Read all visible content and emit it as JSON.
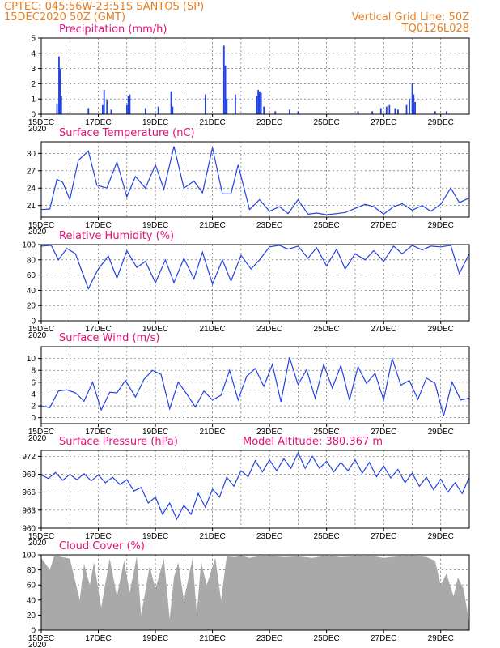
{
  "header": {
    "line1_left": "CPTEC:  045:56W-23:51S  SANTOS (SP)",
    "line2_left": "15DEC2020 50Z (GMT)",
    "line1_right": "Vertical Grid Line: 50Z",
    "line2_right": "TQ0126L028"
  },
  "colors": {
    "header": "#e67e22",
    "title": "#e0117a",
    "series": "#2443e0",
    "cloud": "#a9a9a9"
  },
  "x_labels": [
    "15DEC",
    "17DEC",
    "19DEC",
    "21DEC",
    "23DEC",
    "25DEC",
    "27DEC",
    "29DEC"
  ],
  "x_sublabel": "2020",
  "chart_data": [
    {
      "type": "bar",
      "title": "Precipitation (mm/h)",
      "ylim": [
        0,
        5
      ],
      "yticks": [
        0,
        1,
        2,
        3,
        4,
        5
      ],
      "x_range_days": [
        0,
        15
      ],
      "x_unit": "days after 15DEC2020 00Z (estimated)",
      "events": [
        {
          "x": 0.55,
          "y": 0.7
        },
        {
          "x": 0.62,
          "y": 3.8
        },
        {
          "x": 0.66,
          "y": 3.0
        },
        {
          "x": 0.7,
          "y": 1.2
        },
        {
          "x": 1.65,
          "y": 0.4
        },
        {
          "x": 2.15,
          "y": 0.6
        },
        {
          "x": 2.2,
          "y": 1.6
        },
        {
          "x": 2.3,
          "y": 0.9
        },
        {
          "x": 2.45,
          "y": 0.3
        },
        {
          "x": 3.0,
          "y": 0.6
        },
        {
          "x": 3.05,
          "y": 1.2
        },
        {
          "x": 3.1,
          "y": 1.3
        },
        {
          "x": 3.65,
          "y": 0.4
        },
        {
          "x": 4.1,
          "y": 0.5
        },
        {
          "x": 4.55,
          "y": 1.5
        },
        {
          "x": 4.6,
          "y": 0.5
        },
        {
          "x": 5.75,
          "y": 1.3
        },
        {
          "x": 6.4,
          "y": 4.5
        },
        {
          "x": 6.45,
          "y": 3.2
        },
        {
          "x": 6.5,
          "y": 1.0
        },
        {
          "x": 6.8,
          "y": 1.3
        },
        {
          "x": 7.55,
          "y": 1.2
        },
        {
          "x": 7.6,
          "y": 1.6
        },
        {
          "x": 7.65,
          "y": 1.5
        },
        {
          "x": 7.7,
          "y": 1.4
        },
        {
          "x": 7.8,
          "y": 0.5
        },
        {
          "x": 8.2,
          "y": 0.2
        },
        {
          "x": 8.7,
          "y": 0.3
        },
        {
          "x": 9.0,
          "y": 0.2
        },
        {
          "x": 11.1,
          "y": 0.2
        },
        {
          "x": 11.6,
          "y": 0.2
        },
        {
          "x": 11.9,
          "y": 0.4
        },
        {
          "x": 12.1,
          "y": 0.5
        },
        {
          "x": 12.2,
          "y": 0.6
        },
        {
          "x": 12.4,
          "y": 0.4
        },
        {
          "x": 12.5,
          "y": 0.3
        },
        {
          "x": 12.8,
          "y": 0.6
        },
        {
          "x": 12.9,
          "y": 1.0
        },
        {
          "x": 13.0,
          "y": 2.0
        },
        {
          "x": 13.05,
          "y": 1.3
        },
        {
          "x": 13.1,
          "y": 0.8
        },
        {
          "x": 13.8,
          "y": 0.2
        },
        {
          "x": 14.2,
          "y": 0.2
        }
      ]
    },
    {
      "type": "line",
      "title": "Surface Temperature (nC)",
      "ylim": [
        19,
        32
      ],
      "yticks": [
        21,
        24,
        27,
        30
      ],
      "x_range_days": [
        0,
        15
      ],
      "x_unit": "days after 15DEC2020 00Z (estimated)",
      "x": [
        0,
        0.3,
        0.55,
        0.75,
        1.0,
        1.3,
        1.65,
        1.95,
        2.3,
        2.65,
        3.0,
        3.3,
        3.65,
        4.0,
        4.3,
        4.65,
        5.0,
        5.35,
        5.65,
        6.0,
        6.35,
        6.65,
        6.9,
        7.3,
        7.65,
        8.0,
        8.35,
        8.65,
        9.0,
        9.35,
        9.65,
        10.0,
        10.35,
        10.65,
        11.0,
        11.35,
        11.65,
        12.0,
        12.35,
        12.65,
        13.0,
        13.35,
        13.65,
        14.0,
        14.35,
        14.65,
        15.0
      ],
      "values": [
        20.3,
        20.4,
        25.5,
        25.0,
        22.0,
        28.8,
        30.4,
        24.5,
        24.0,
        28.5,
        22.5,
        26.0,
        24.0,
        28.0,
        23.8,
        31.2,
        24.0,
        25.2,
        23.2,
        31.0,
        23.0,
        23.0,
        28.0,
        20.3,
        22.0,
        20.0,
        20.8,
        19.6,
        22.0,
        19.5,
        19.7,
        19.4,
        19.6,
        19.8,
        20.5,
        21.2,
        20.8,
        19.5,
        20.8,
        21.3,
        20.2,
        21.0,
        20.0,
        21.2,
        24.0,
        21.5,
        22.3
      ]
    },
    {
      "type": "line",
      "title": "Relative Humidity (%)",
      "ylim": [
        0,
        100
      ],
      "yticks": [
        0,
        20,
        40,
        60,
        80,
        100
      ],
      "x_range_days": [
        0,
        15
      ],
      "x_unit": "days after 15DEC2020 00Z (estimated)",
      "x": [
        0,
        0.35,
        0.6,
        0.9,
        1.2,
        1.65,
        2.0,
        2.35,
        2.65,
        3.0,
        3.35,
        3.65,
        4.0,
        4.35,
        4.65,
        5.0,
        5.35,
        5.65,
        6.0,
        6.35,
        6.65,
        7.0,
        7.35,
        7.65,
        8.0,
        8.35,
        8.65,
        9.0,
        9.35,
        9.65,
        10.0,
        10.35,
        10.65,
        11.0,
        11.35,
        11.65,
        12.0,
        12.35,
        12.65,
        13.0,
        13.35,
        13.65,
        14.0,
        14.35,
        14.65,
        15.0
      ],
      "values": [
        98,
        99,
        80,
        95,
        88,
        42,
        68,
        85,
        56,
        92,
        70,
        78,
        50,
        80,
        50,
        82,
        55,
        90,
        48,
        80,
        52,
        86,
        68,
        80,
        97,
        99,
        94,
        98,
        82,
        96,
        72,
        94,
        68,
        88,
        80,
        92,
        78,
        98,
        88,
        99,
        93,
        98,
        97,
        99,
        62,
        88
      ]
    },
    {
      "type": "line",
      "title": "Surface Wind (m/s)",
      "ylim": [
        -1,
        12
      ],
      "yticks": [
        0,
        2,
        4,
        6,
        8,
        10
      ],
      "x_range_days": [
        0,
        15
      ],
      "x_unit": "days after 15DEC2020 00Z (estimated)",
      "x": [
        0,
        0.3,
        0.6,
        0.9,
        1.2,
        1.5,
        1.8,
        2.1,
        2.4,
        2.65,
        2.95,
        3.3,
        3.6,
        3.9,
        4.2,
        4.5,
        4.8,
        5.1,
        5.4,
        5.7,
        6.0,
        6.3,
        6.6,
        6.9,
        7.2,
        7.5,
        7.8,
        8.1,
        8.4,
        8.7,
        9.0,
        9.3,
        9.6,
        9.9,
        10.2,
        10.5,
        10.8,
        11.1,
        11.4,
        11.7,
        12.0,
        12.3,
        12.6,
        12.9,
        13.2,
        13.5,
        13.8,
        14.1,
        14.4,
        14.7,
        15.0
      ],
      "values": [
        2.0,
        1.7,
        4.5,
        4.7,
        4.2,
        2.8,
        6.0,
        1.3,
        4.3,
        4.2,
        6.3,
        3.5,
        6.5,
        8.0,
        7.3,
        1.5,
        6.0,
        4.0,
        1.8,
        4.5,
        3.0,
        3.8,
        8.0,
        3.0,
        7.0,
        8.3,
        5.3,
        9.0,
        2.7,
        10.2,
        5.6,
        8.1,
        3.3,
        9.0,
        5.0,
        8.8,
        3.0,
        8.6,
        5.8,
        7.5,
        3.0,
        10.0,
        5.5,
        6.3,
        3.1,
        6.7,
        5.8,
        0.3,
        6.0,
        3.0,
        3.3
      ]
    },
    {
      "type": "line",
      "title": "Surface Pressure (hPa)",
      "annotation": "Model Altitude: 380.367 m",
      "ylim": [
        960,
        973
      ],
      "yticks": [
        960,
        963,
        966,
        969,
        972
      ],
      "x_range_days": [
        0,
        15
      ],
      "x_unit": "days after 15DEC2020 00Z (estimated)",
      "x": [
        0,
        0.25,
        0.5,
        0.75,
        1.0,
        1.25,
        1.5,
        1.75,
        2.0,
        2.25,
        2.5,
        2.75,
        3.0,
        3.25,
        3.5,
        3.75,
        4.0,
        4.25,
        4.5,
        4.75,
        5.0,
        5.25,
        5.5,
        5.75,
        6.0,
        6.25,
        6.5,
        6.75,
        7.0,
        7.25,
        7.5,
        7.75,
        8.0,
        8.25,
        8.5,
        8.75,
        9.0,
        9.25,
        9.5,
        9.75,
        10.0,
        10.25,
        10.5,
        10.75,
        11.0,
        11.25,
        11.5,
        11.75,
        12.0,
        12.25,
        12.5,
        12.75,
        13.0,
        13.25,
        13.5,
        13.75,
        14.0,
        14.25,
        14.5,
        14.75,
        15.0
      ],
      "values": [
        968.9,
        968.3,
        969.3,
        968.0,
        969.0,
        968.1,
        969.1,
        967.9,
        968.9,
        967.6,
        968.5,
        967.3,
        968.1,
        966.2,
        966.8,
        964.2,
        965.2,
        962.3,
        964.2,
        961.5,
        963.8,
        962.3,
        965.8,
        963.5,
        966.5,
        965.2,
        968.5,
        967.0,
        969.6,
        968.6,
        971.3,
        969.4,
        971.4,
        969.6,
        971.6,
        970.0,
        972.6,
        970.0,
        972.0,
        970.0,
        971.2,
        969.4,
        971.0,
        969.6,
        971.4,
        969.2,
        971.0,
        968.6,
        970.4,
        968.4,
        969.8,
        967.6,
        969.2,
        967.0,
        968.5,
        966.4,
        968.2,
        966.0,
        967.6,
        965.8,
        968.5
      ]
    },
    {
      "type": "area",
      "title": "Cloud Cover (%)",
      "ylim": [
        0,
        100
      ],
      "yticks": [
        0,
        20,
        40,
        60,
        80,
        100
      ],
      "x_range_days": [
        0,
        15
      ],
      "x_unit": "days after 15DEC2020 00Z (estimated)",
      "x": [
        0,
        0.3,
        0.45,
        0.6,
        1.0,
        1.35,
        1.5,
        1.7,
        1.85,
        2.1,
        2.4,
        2.65,
        2.9,
        3.1,
        3.35,
        3.5,
        3.8,
        4.0,
        4.3,
        4.5,
        4.65,
        4.8,
        5.0,
        5.3,
        5.45,
        5.6,
        5.8,
        6.1,
        6.3,
        6.5,
        6.8,
        7.0,
        7.3,
        7.6,
        8.0,
        8.5,
        9.0,
        9.5,
        10.0,
        10.5,
        11.0,
        11.5,
        12.0,
        12.5,
        13.0,
        13.5,
        13.8,
        14.0,
        14.2,
        14.45,
        14.6,
        14.8,
        15.0
      ],
      "values": [
        96,
        80,
        98,
        98,
        95,
        40,
        88,
        60,
        90,
        30,
        95,
        45,
        92,
        50,
        98,
        20,
        85,
        55,
        95,
        15,
        70,
        90,
        40,
        95,
        22,
        90,
        60,
        96,
        40,
        98,
        97,
        99,
        96,
        98,
        99,
        97,
        98,
        96,
        99,
        97,
        98,
        99,
        96,
        98,
        99,
        97,
        92,
        60,
        75,
        45,
        70,
        55,
        10
      ]
    }
  ]
}
